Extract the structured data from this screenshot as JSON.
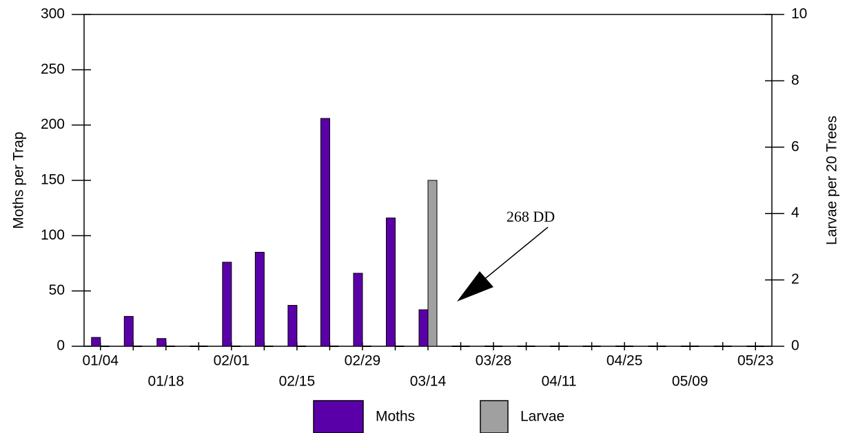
{
  "chart_data": {
    "type": "bar",
    "annotation": "268 DD",
    "y_label": "Moths per Trap",
    "y2_label": "Larvae per 20 Trees",
    "categories": [
      "01/04",
      null,
      "01/18",
      null,
      "02/01",
      null,
      "02/15",
      null,
      "02/29",
      null,
      "03/14",
      null,
      "03/28",
      null,
      "04/11",
      null,
      "04/25",
      null,
      "05/09",
      null,
      "05/23"
    ],
    "series": [
      {
        "name": "Moths",
        "color": "#5a00a8",
        "values": [
          8,
          27,
          7,
          0,
          76,
          85,
          37,
          206,
          66,
          116,
          33,
          0,
          0,
          0,
          0,
          0,
          0,
          0,
          0,
          0,
          0
        ]
      },
      {
        "name": "Larvae",
        "color": "#a0a0a0",
        "axis": "y2",
        "values": [
          0,
          0,
          0,
          0,
          0,
          0,
          0,
          0,
          0,
          0,
          5,
          0,
          0,
          0,
          0,
          0,
          0,
          0,
          0,
          0,
          0
        ]
      }
    ],
    "ylim": [
      0,
      300
    ],
    "yticks": [
      0,
      50,
      100,
      150,
      200,
      250,
      300
    ],
    "y2lim": [
      0,
      10
    ],
    "y2ticks": [
      0,
      2,
      4,
      6,
      8,
      10
    ],
    "grid": false
  }
}
